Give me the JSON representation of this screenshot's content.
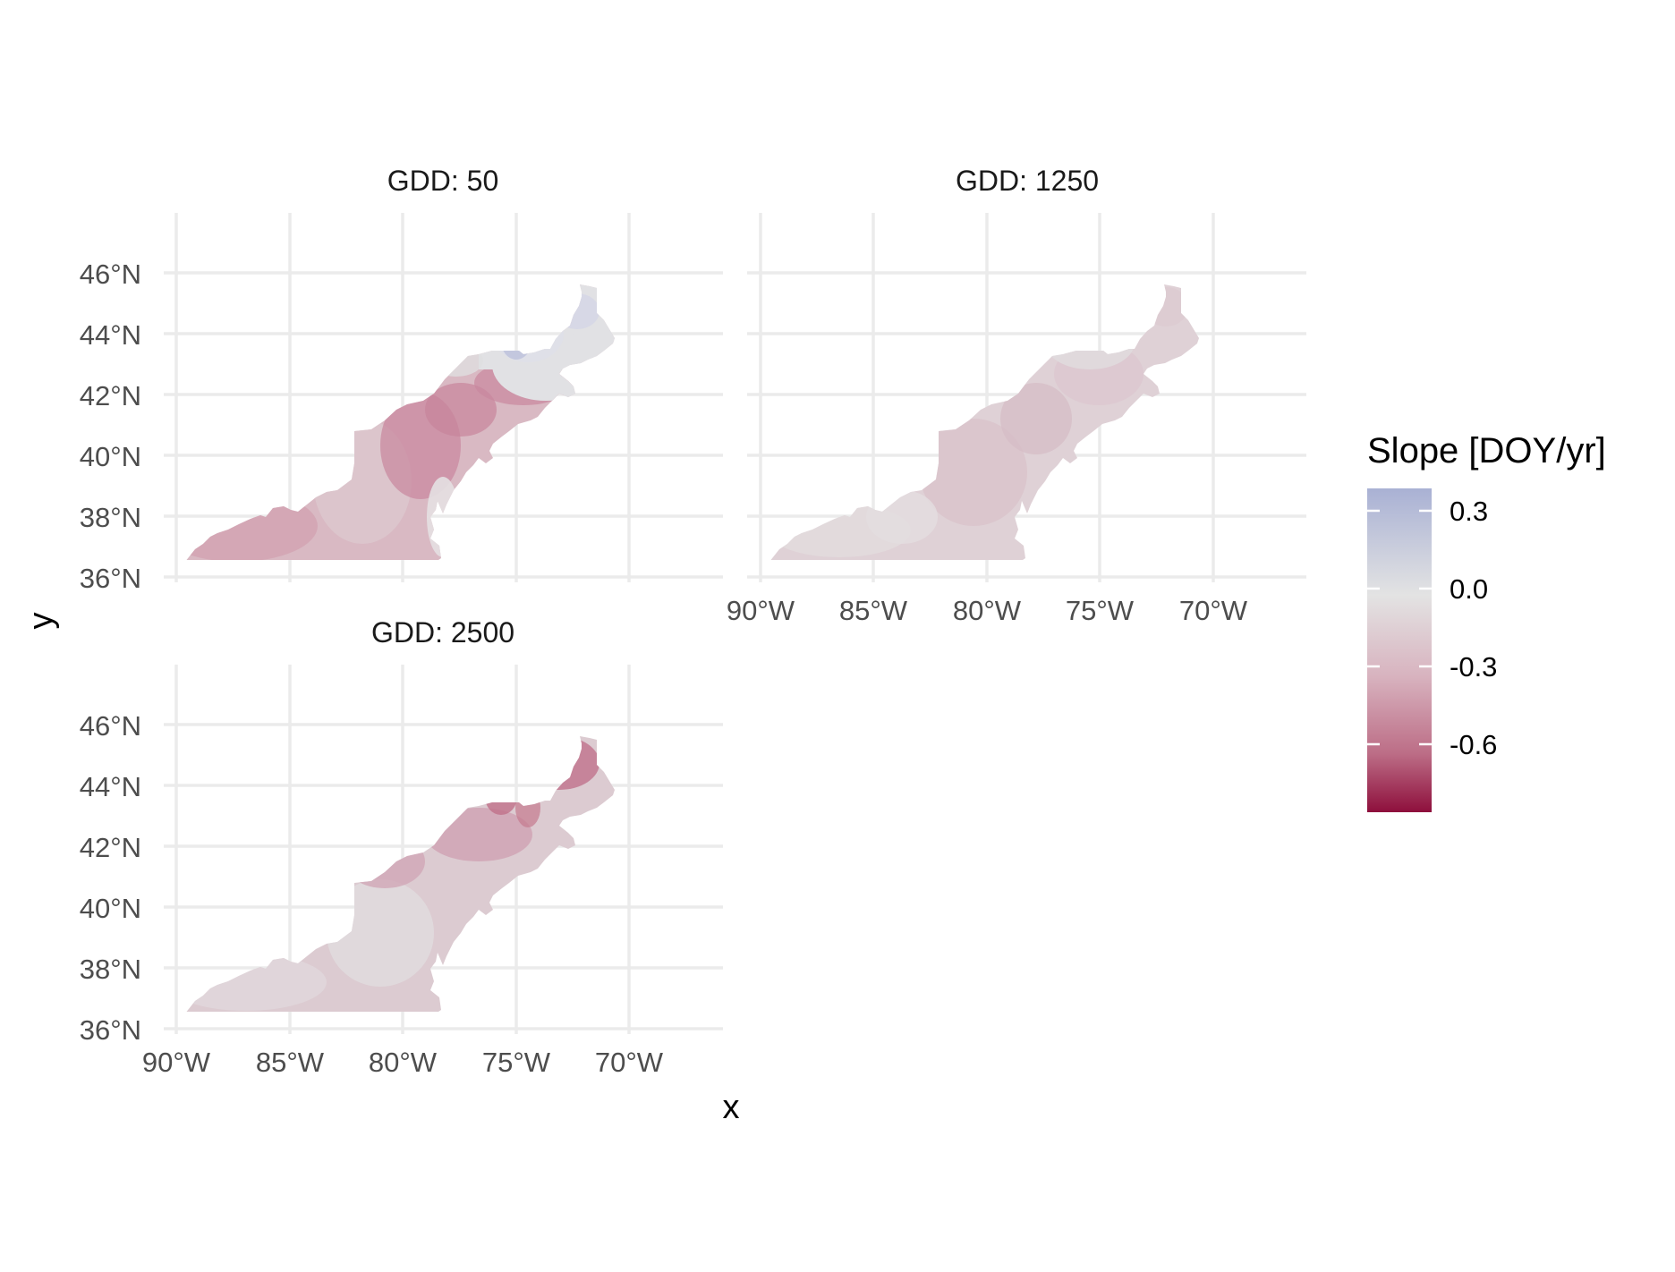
{
  "panels": [
    {
      "id": "gdd50",
      "title": "GDD: 50",
      "show_x_ticks": false
    },
    {
      "id": "gdd1250",
      "title": "GDD: 1250",
      "show_x_ticks": true
    },
    {
      "id": "gdd2500",
      "title": "GDD: 2500",
      "show_x_ticks": true
    }
  ],
  "axes": {
    "xlabel": "x",
    "ylabel": "y",
    "x_ticks": [
      "90°W",
      "85°W",
      "80°W",
      "75°W",
      "70°W"
    ],
    "y_ticks": [
      "36°N",
      "38°N",
      "40°N",
      "42°N",
      "44°N",
      "46°N"
    ]
  },
  "legend": {
    "title": "Slope [DOY/yr]",
    "labels": [
      "0.3",
      "0.0",
      "-0.3",
      "-0.6"
    ],
    "colors": {
      "high": "#a9b1d4",
      "mid": "#e3e3e3",
      "low": "#8e0f3c"
    },
    "placement": "right"
  },
  "chart_data": {
    "type": "heatmap",
    "variable": "Slope [DOY/yr]",
    "facets": [
      "GDD: 50",
      "GDD: 1250",
      "GDD: 2500"
    ],
    "xlim_deg": [
      -90.5,
      -65.5
    ],
    "ylim_deg": [
      35.9,
      48.1
    ],
    "color_range": [
      -0.78,
      0.4
    ],
    "region_mean_slope": {
      "GDD: 50": -0.18,
      "GDD: 1250": -0.1,
      "GDD: 2500": -0.2
    },
    "color_stops": [
      {
        "value": 0.4,
        "color": "#a9b1d4"
      },
      {
        "value": 0.0,
        "color": "#e3e3e3"
      },
      {
        "value": -0.3,
        "color": "#d8b3bf"
      },
      {
        "value": -0.78,
        "color": "#8e0f3c"
      }
    ]
  }
}
